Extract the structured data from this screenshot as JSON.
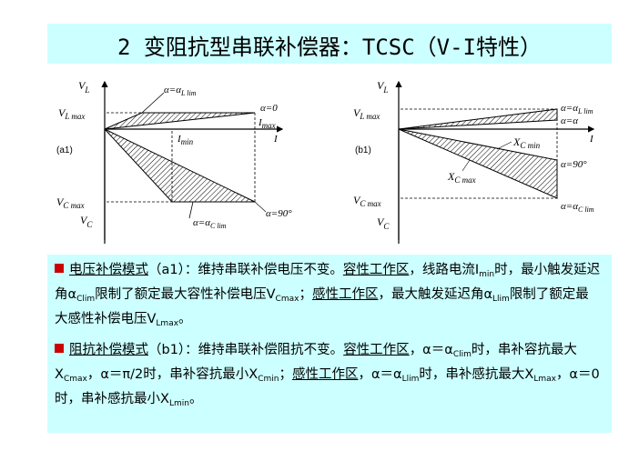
{
  "title": "2 变阻抗型串联补偿器：TCSC（V-I特性）",
  "fig_a": {
    "panel": "(a1)",
    "y_top": "V",
    "y_top_sub": "L",
    "y_bot": "V",
    "y_bot_sub": "C",
    "vl_max": "V",
    "vl_max_sub": "L max",
    "vc_max": "V",
    "vc_max_sub": "C max",
    "alpha_llim": "α=α",
    "alpha_llim_sub": "L lim",
    "alpha_0": "α=0",
    "i_max": "I",
    "i_max_sub": "max",
    "i_axis": "I",
    "i_min": "I",
    "i_min_sub": "min",
    "alpha_clim": "α=α",
    "alpha_clim_sub": "C lim",
    "alpha_90": "α=90°"
  },
  "fig_b": {
    "panel": "(b1)",
    "y_top": "V",
    "y_top_sub": "L",
    "y_bot": "V",
    "y_bot_sub": "C",
    "vl_max": "V",
    "vl_max_sub": "L max",
    "vc_max": "V",
    "vc_max_sub": "C max",
    "alpha_llim": "α=α",
    "alpha_llim_sub": "L lim",
    "alpha_alpha": "α=α",
    "i_axis": "I",
    "xc_min": "X",
    "xc_min_sub": "C min",
    "xc_max": "X",
    "xc_max_sub": "C max",
    "alpha_90": "α=90°",
    "alpha_clim": "α=α",
    "alpha_clim_sub": "C lim"
  },
  "para1": {
    "head": "电压补偿模式",
    "p1": "（a1）：维持串联补偿电压不变。",
    "cap_zone": "容性工作区",
    "p2": "，线路电流I",
    "p2_sub": "min",
    "p3": "时，最小触发延迟角α",
    "p3_sub": "Clim",
    "p4": "限制了额定最大容性补偿电压V",
    "p4_sub": "Cmax",
    "p5": "；",
    "ind_zone": "感性工作区",
    "p6": "，最大触发延迟角α",
    "p6_sub": "Llim",
    "p7": "限制了额定最大感性补偿电压V",
    "p7_sub": "Lmax",
    "p8": "。"
  },
  "para2": {
    "head": "阻抗补偿模式",
    "p1": "（b1）：维持串联补偿阻抗不变。",
    "cap_zone": "容性工作区",
    "p2": "，α＝α",
    "p2_sub": "Clim",
    "p3": "时，串补容抗最大X",
    "p3_sub": "Cmax",
    "p4": "，α＝π/2时，串补容抗最小X",
    "p4_sub": "Cmin",
    "p5": "；",
    "ind_zone": "感性工作区",
    "p6": "，α＝α",
    "p6_sub": "Llim",
    "p7": "时，串补感抗最大X",
    "p7_sub": "Lmax",
    "p8": "，α＝0时，串补感抗最小X",
    "p8_sub": "Lmin",
    "p9": "。"
  }
}
